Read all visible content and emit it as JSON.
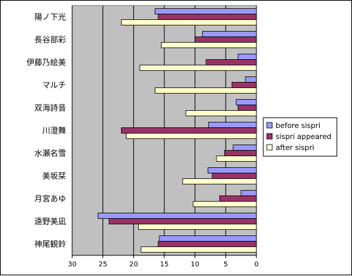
{
  "chart_data": {
    "type": "bar",
    "orientation": "horizontal",
    "x_axis_reversed": true,
    "categories": [
      "陽ノ下光",
      "長谷部彩",
      "伊藤乃絵美",
      "マルチ",
      "双海詩音",
      "川澄舞",
      "水瀬名雪",
      "美坂栞",
      "月宮あゆ",
      "遠野美凪",
      "神尾観鈴"
    ],
    "series": [
      {
        "name": "before sispri",
        "color": "#9999ff",
        "values": [
          16.5,
          8.8,
          3.0,
          1.8,
          3.3,
          7.8,
          3.8,
          7.9,
          2.5,
          25.8,
          15.8
        ]
      },
      {
        "name": "sispri appeared",
        "color": "#993366",
        "values": [
          16.0,
          10.0,
          8.2,
          4.0,
          3.0,
          22.0,
          5.2,
          7.2,
          6.0,
          24.0,
          16.0
        ]
      },
      {
        "name": "after sispri",
        "color": "#ffffcc",
        "values": [
          22.0,
          15.5,
          19.0,
          16.5,
          11.5,
          21.2,
          6.5,
          12.0,
          10.3,
          19.2,
          18.8
        ]
      }
    ],
    "xlim": [
      0,
      30
    ],
    "x_ticks": [
      "30",
      "25",
      "20",
      "15",
      "10",
      "5",
      "0"
    ],
    "grid": "vertical",
    "plot_background": "#c0c0c0",
    "legend_position": "right"
  }
}
